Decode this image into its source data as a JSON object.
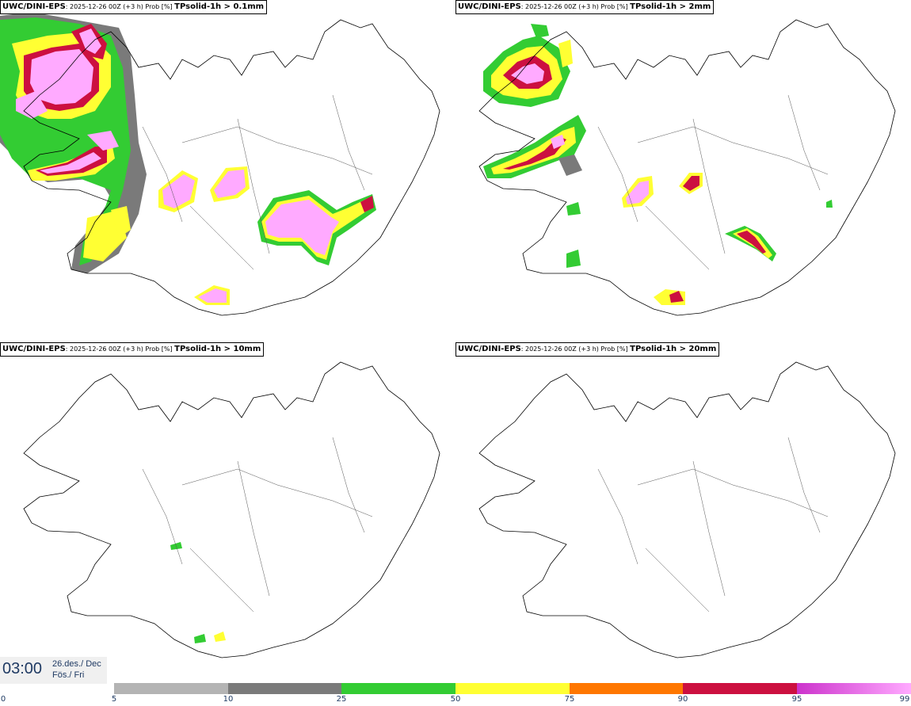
{
  "panels": [
    {
      "model": "UWC/DINI-EPS",
      "meta": ": 2025-12-26 00Z (+3 h) Prob [%] ",
      "param": "TPsolid-1h > 0.1mm"
    },
    {
      "model": "UWC/DINI-EPS",
      "meta": ": 2025-12-26 00Z (+3 h) Prob [%] ",
      "param": "TPsolid-1h > 2mm"
    },
    {
      "model": "UWC/DINI-EPS",
      "meta": ": 2025-12-26 00Z (+3 h) Prob [%] ",
      "param": "TPsolid-1h > 10mm"
    },
    {
      "model": "UWC/DINI-EPS",
      "meta": ": 2025-12-26 00Z (+3 h) Prob [%] ",
      "param": "TPsolid-1h > 20mm"
    }
  ],
  "timebox": {
    "time": "03:00",
    "date_line1": "26.des./ Dec",
    "date_line2": "Fös./ Fri"
  },
  "legend": {
    "ticks": [
      "0",
      "5",
      "10",
      "25",
      "50",
      "75",
      "90",
      "95",
      "99"
    ],
    "colors": [
      "#b4b4b4",
      "#7a7a7a",
      "#33cc33",
      "#ffff33",
      "#ff7700",
      "#cc1040",
      "#cc33cc",
      "#ffaaff"
    ]
  }
}
